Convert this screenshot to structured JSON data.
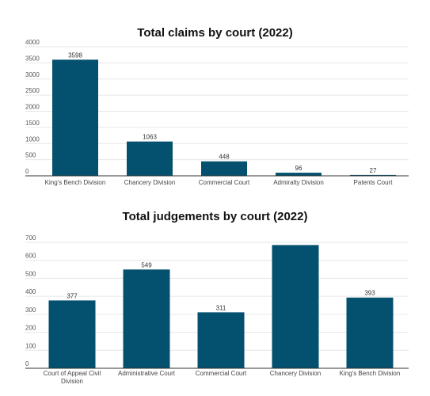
{
  "colors": {
    "bar": "#03506f",
    "grid": "#e6e6e6",
    "axis": "#333333"
  },
  "chart_data": [
    {
      "type": "bar",
      "title": "Total claims by court (2022)",
      "xlabel": "",
      "ylabel": "",
      "ylim": [
        0,
        4000
      ],
      "yticks": [
        0,
        500,
        1000,
        1500,
        2000,
        2500,
        3000,
        3500,
        4000
      ],
      "grid": true,
      "categories": [
        "King's Bench Division",
        "Chancery Division",
        "Commercial Court",
        "Admiralty Division",
        "Patents Court"
      ],
      "values": [
        3598,
        1063,
        448,
        96,
        27
      ],
      "data_labels": [
        "3598",
        "1063",
        "448",
        "96",
        "27"
      ]
    },
    {
      "type": "bar",
      "title": "Total judgements by court (2022)",
      "xlabel": "",
      "ylabel": "",
      "ylim": [
        0,
        700
      ],
      "yticks": [
        0,
        100,
        200,
        300,
        400,
        500,
        600,
        700
      ],
      "grid": true,
      "categories": [
        "Court of Appeal Civil Division",
        "Administrative Court",
        "Commercial Court",
        "Chancery Division",
        "King's Bench Division"
      ],
      "values": [
        377,
        549,
        311,
        685,
        393
      ],
      "data_labels": [
        "377",
        "549",
        "311",
        "",
        "393"
      ]
    }
  ]
}
